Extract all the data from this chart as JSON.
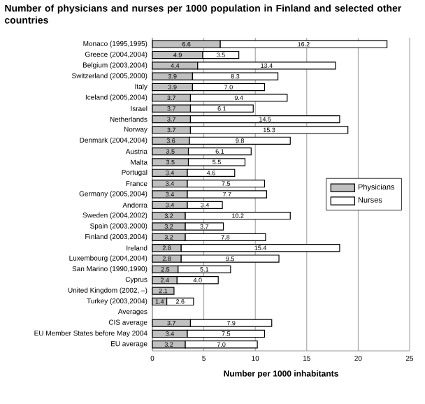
{
  "chart_data": {
    "type": "bar",
    "orientation": "horizontal",
    "stacked": true,
    "title": "Number of physicians and nurses per 1000 population in Finland and selected other countries",
    "xlabel": "Number per 1000 inhabitants",
    "categories": [
      "Monaco (1995,1995)",
      "Greece (2004,2004)",
      "Belgium (2003,2004)",
      "Switzerland (2005,2000)",
      "Italy",
      "Iceland (2005,2004)",
      "Israel",
      "Netherlands",
      "Norway",
      "Denmark (2004,2004)",
      "Austria",
      "Malta",
      "Portugal",
      "France",
      "Germany (2005,2004)",
      "Andorra",
      "Sweden (2004,2002)",
      "Spain (2003,2000)",
      "Finland (2003,2004)",
      "Ireland",
      "Luxembourg  (2004,2004)",
      "San Marino (1990,1990)",
      "Cyprus",
      "United Kingdom (2002, –)",
      "Turkey (2003,2004)",
      "Averages",
      "CIS average",
      "EU Member States before May 2004",
      "EU average"
    ],
    "series": [
      {
        "name": "Physicians",
        "color": "#c0c0c0",
        "values": [
          6.6,
          4.9,
          4.4,
          3.9,
          3.9,
          3.7,
          3.7,
          3.7,
          3.7,
          3.6,
          3.5,
          3.5,
          3.4,
          3.4,
          3.4,
          3.4,
          3.2,
          3.2,
          3.2,
          2.8,
          2.8,
          2.5,
          2.4,
          2.1,
          1.4,
          null,
          3.7,
          3.4,
          3.2
        ],
        "value_labels": [
          "6.6",
          "4.9",
          "4.4",
          "3.9",
          "3.9",
          "3.7",
          "3.7",
          "3.7",
          "3.7",
          "3.6",
          "3.5",
          "3.5",
          "3.4",
          "3.4",
          "3.4",
          "3.4",
          "3.2",
          "3.2",
          "3.2",
          "2.8",
          "2.8",
          "2.5",
          "2.4",
          "2.1",
          "1.4",
          null,
          "3.7",
          "3.4",
          "3.2"
        ]
      },
      {
        "name": "Nurses",
        "color": "#ffffff",
        "values": [
          16.2,
          3.5,
          13.4,
          8.3,
          7.0,
          9.4,
          6.1,
          14.5,
          15.3,
          9.8,
          6.1,
          5.5,
          4.6,
          7.5,
          7.7,
          3.4,
          10.2,
          3.7,
          7.8,
          15.4,
          9.5,
          5.1,
          4.0,
          null,
          2.6,
          null,
          7.9,
          7.5,
          7.0
        ],
        "value_labels": [
          "16.2",
          "3.5",
          "13.4",
          "8.3",
          "7.0",
          "9.4",
          "6.1",
          "14.5",
          "15.3",
          "9.8",
          "6.1",
          "5.5",
          "4.6",
          "7.5",
          "7.7",
          "3.4",
          "10.2",
          "3.7",
          "7.8",
          "15.4",
          "9.5",
          "5.1",
          "4.0",
          null,
          "2.6",
          null,
          "7.9",
          "7.5",
          "7.0"
        ]
      }
    ],
    "xlim": [
      0,
      25
    ],
    "xticks": [
      0,
      5,
      10,
      15,
      20,
      25
    ],
    "grid": "x",
    "legend": "right"
  }
}
